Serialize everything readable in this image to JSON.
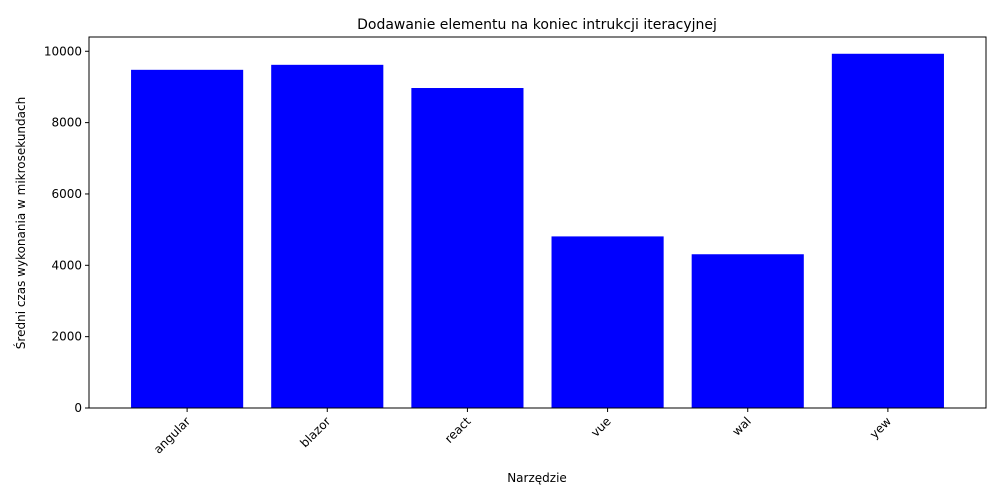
{
  "chart_data": {
    "type": "bar",
    "title": "Dodawanie elementu na koniec intrukcji iteracyjnej",
    "xlabel": "Narzędzie",
    "ylabel": "Średni czas wykonania w mikrosekundach",
    "categories": [
      "angular",
      "blazor",
      "react",
      "vue",
      "wal",
      "yew"
    ],
    "values": [
      9480,
      9620,
      8970,
      4810,
      4310,
      9930
    ],
    "ylim": [
      0,
      10400
    ],
    "yticks": [
      0,
      2000,
      4000,
      6000,
      8000,
      10000
    ],
    "bar_color": "#0000ff",
    "grid": false,
    "x_tick_rotation_deg": 45
  }
}
